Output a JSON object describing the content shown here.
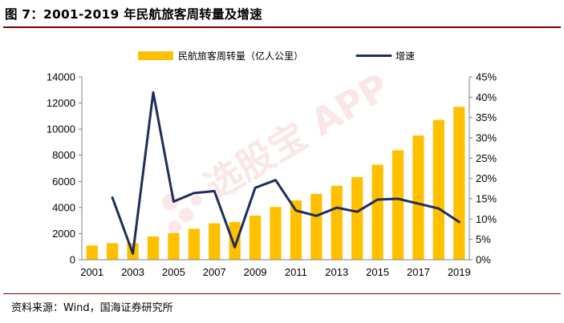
{
  "figure": {
    "title": "图 7：2001-2019 年民航旅客周转量及增速",
    "source": "资料来源：Wind，国海证券研究所"
  },
  "watermark": {
    "text": "选股宝 APP",
    "color": "#e5454a"
  },
  "colors": {
    "bars": "#ffc000",
    "line": "#1f2d5c"
  },
  "chart_data": {
    "type": "bar",
    "title": "",
    "x": [
      "2001",
      "2002",
      "2003",
      "2004",
      "2005",
      "2006",
      "2007",
      "2008",
      "2009",
      "2010",
      "2011",
      "2012",
      "2013",
      "2014",
      "2015",
      "2016",
      "2017",
      "2018",
      "2019"
    ],
    "x_tick_labels": [
      "2001",
      "2003",
      "2005",
      "2007",
      "2009",
      "2011",
      "2013",
      "2015",
      "2017",
      "2019"
    ],
    "series": [
      {
        "name": "民航旅客周转量（亿人公里）",
        "type": "bar",
        "axis": "left",
        "values": [
          1090,
          1270,
          1260,
          1780,
          2040,
          2370,
          2790,
          2880,
          3380,
          4040,
          4540,
          5030,
          5660,
          6330,
          7280,
          8380,
          9510,
          10710,
          11710
        ]
      },
      {
        "name": "增速",
        "type": "line",
        "axis": "right",
        "values": [
          null,
          15.3,
          1.5,
          41.2,
          14.3,
          16.4,
          16.9,
          3.1,
          17.7,
          19.6,
          12.1,
          10.8,
          12.8,
          11.8,
          14.8,
          15.0,
          13.8,
          12.6,
          9.3
        ]
      }
    ],
    "y_left": {
      "min": 0,
      "max": 14000,
      "ticks": [
        "0",
        "2000",
        "4000",
        "6000",
        "8000",
        "10000",
        "12000",
        "14000"
      ]
    },
    "y_right": {
      "min": 0,
      "max": 45,
      "ticks": [
        "0%",
        "5%",
        "10%",
        "15%",
        "20%",
        "25%",
        "30%",
        "35%",
        "40%",
        "45%"
      ]
    },
    "grid": false,
    "legend_position": "top"
  }
}
